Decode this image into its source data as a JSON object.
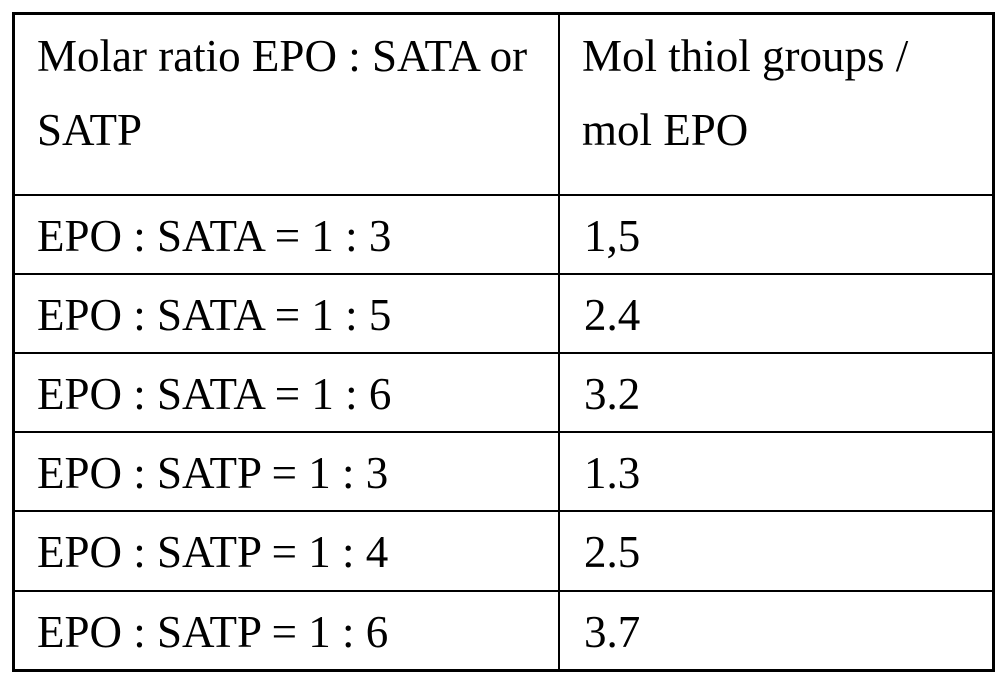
{
  "table": {
    "header": [
      "Molar ratio EPO : SATA or SATP",
      "Mol thiol groups / mol EPO"
    ],
    "rows": [
      [
        "EPO : SATA = 1 : 3",
        "1,5"
      ],
      [
        "EPO : SATA = 1 : 5",
        "2.4"
      ],
      [
        "EPO : SATA = 1 : 6",
        "3.2"
      ],
      [
        "EPO : SATP = 1 : 3",
        "1.3"
      ],
      [
        "EPO : SATP = 1 : 4",
        "2.5"
      ],
      [
        "EPO : SATP = 1 : 6",
        "3.7"
      ]
    ]
  }
}
